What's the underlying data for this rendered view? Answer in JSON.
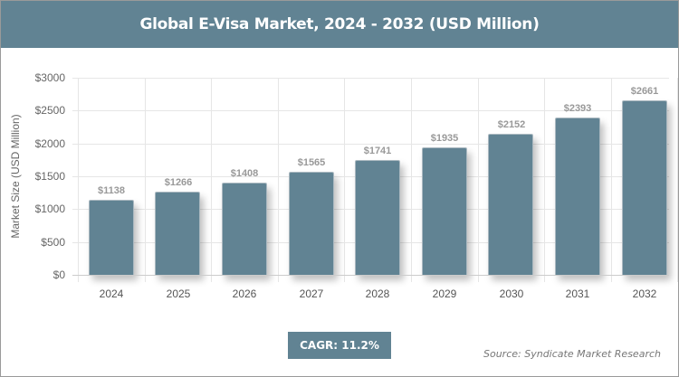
{
  "title": "Global E-Visa Market, 2024 - 2032 (USD Million)",
  "badge": {
    "label": "CAGR: 11.2%"
  },
  "source": "Source: Syndicate Market Research",
  "colors": {
    "bar": "#618393",
    "header": "#618393"
  },
  "chart_data": {
    "type": "bar",
    "title": "Global E-Visa Market, 2024 - 2032 (USD Million)",
    "xlabel": "",
    "ylabel": "Market Size (USD Million)",
    "categories": [
      "2024",
      "2025",
      "2026",
      "2027",
      "2028",
      "2029",
      "2030",
      "2031",
      "2032"
    ],
    "values": [
      1138,
      1266,
      1408,
      1565,
      1741,
      1935,
      2152,
      2393,
      2661
    ],
    "value_labels": [
      "$1138",
      "$1266",
      "$1408",
      "$1565",
      "$1741",
      "$1935",
      "$2152",
      "$2393",
      "$2661"
    ],
    "ylim": [
      0,
      3000
    ],
    "yticks": [
      "$0",
      "$500",
      "$1000",
      "$1500",
      "$2000",
      "$2500",
      "$3000"
    ],
    "grid": true,
    "legend": "none",
    "annotations": [
      "CAGR: 11.2%"
    ]
  }
}
